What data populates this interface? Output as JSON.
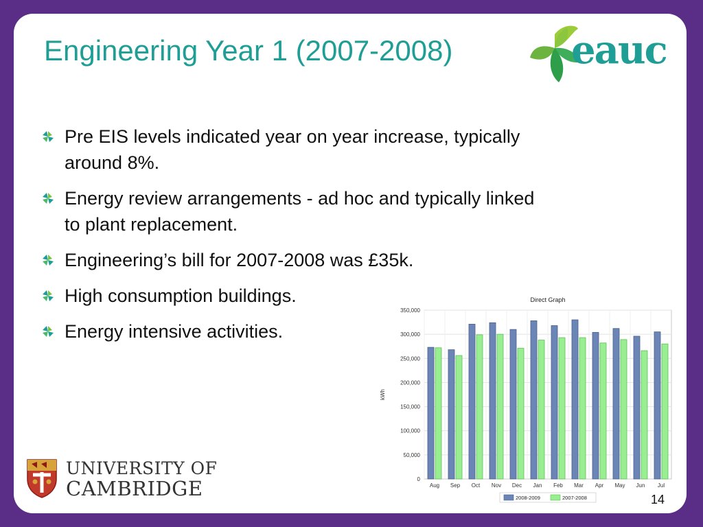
{
  "slide": {
    "title": "Engineering Year 1 (2007-2008)",
    "page_number": "14",
    "bullets": [
      "Pre EIS levels indicated year on year increase, typically around 8%.",
      "Energy review arrangements - ad hoc and typically linked to plant replacement.",
      "Engineering’s bill for 2007-2008 was £35k.",
      "High consumption buildings.",
      "Energy intensive activities."
    ],
    "logo_eauc_text": "eauc",
    "cambridge_line1": "UNIVERSITY OF",
    "cambridge_line2": "CAMBRIDGE"
  },
  "colors": {
    "background": "#5a2d87",
    "title": "#1f9e95",
    "series_2008_2009": "#6a85b6",
    "series_2007_2008": "#98ee90"
  },
  "chart_data": {
    "type": "bar",
    "title": "Direct Graph",
    "ylabel": "kWh",
    "xlabel": "",
    "ylim": [
      0,
      350000
    ],
    "yticks": [
      "0",
      "50,000",
      "100,000",
      "150,000",
      "200,000",
      "250,000",
      "300,000",
      "350,000"
    ],
    "categories": [
      "Aug",
      "Sep",
      "Oct",
      "Nov",
      "Dec",
      "Jan",
      "Feb",
      "Mar",
      "Apr",
      "May",
      "Jun",
      "Jul"
    ],
    "grid": true,
    "legend_position": "bottom",
    "series": [
      {
        "name": "2008-2009",
        "values": [
          273000,
          268000,
          321000,
          324000,
          310000,
          328000,
          318000,
          330000,
          304000,
          312000,
          296000,
          305000
        ]
      },
      {
        "name": "2007-2008",
        "values": [
          272000,
          256000,
          299000,
          300000,
          271000,
          288000,
          293000,
          293000,
          282000,
          289000,
          266000,
          280000
        ]
      }
    ]
  }
}
